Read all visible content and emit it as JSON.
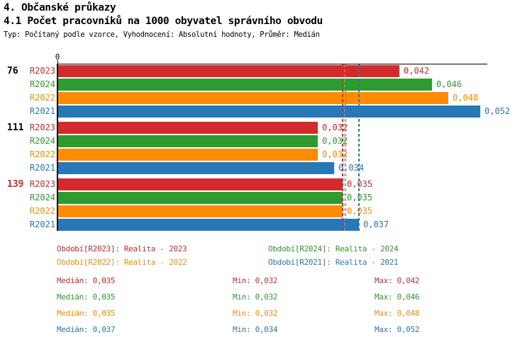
{
  "header": {
    "title": "4. Občanské průkazy",
    "subtitle": "4.1 Počet pracovníků na 1000 obyvatel správního obvodu",
    "meta": "Typ: Počítaný podle vzorce, Vyhodnocení: Absolutní hodnoty, Průměr: Medián"
  },
  "colors": {
    "R2023": "#d32b2b",
    "R2024": "#2e9b2e",
    "R2022": "#ff8c00",
    "R2021": "#2878b8",
    "axis": "#000000",
    "highlight_group_label": "#d32b2b",
    "normal_group_label": "#000000"
  },
  "chart_data": {
    "type": "bar",
    "orientation": "horizontal",
    "x_axis": {
      "origin_label": "0",
      "max": 0.0529,
      "grid": false
    },
    "series_order": [
      "R2023",
      "R2024",
      "R2022",
      "R2021"
    ],
    "groups": [
      {
        "label": "76",
        "highlight": false,
        "bars": [
          {
            "series": "R2023",
            "value": 0.042,
            "display": "0,042"
          },
          {
            "series": "R2024",
            "value": 0.046,
            "display": "0,046"
          },
          {
            "series": "R2022",
            "value": 0.048,
            "display": "0,048"
          },
          {
            "series": "R2021",
            "value": 0.052,
            "display": "0,052"
          }
        ]
      },
      {
        "label": "111",
        "highlight": false,
        "bars": [
          {
            "series": "R2023",
            "value": 0.032,
            "display": "0,032"
          },
          {
            "series": "R2024",
            "value": 0.032,
            "display": "0,032"
          },
          {
            "series": "R2022",
            "value": 0.032,
            "display": "0,032"
          },
          {
            "series": "R2021",
            "value": 0.034,
            "display": "0,034"
          }
        ]
      },
      {
        "label": "139",
        "highlight": true,
        "bars": [
          {
            "series": "R2023",
            "value": 0.035,
            "display": "0,035"
          },
          {
            "series": "R2024",
            "value": 0.035,
            "display": "0,035"
          },
          {
            "series": "R2022",
            "value": 0.035,
            "display": "0,035"
          },
          {
            "series": "R2021",
            "value": 0.037,
            "display": "0,037"
          }
        ]
      }
    ],
    "median_lines": [
      {
        "series": "R2023",
        "value": 0.035
      },
      {
        "series": "R2022",
        "value": 0.035
      },
      {
        "series": "R2024",
        "value": 0.035
      },
      {
        "series": "R2021",
        "value": 0.037
      }
    ]
  },
  "legend": {
    "items": [
      {
        "series": "R2023",
        "label": "Období[R2023]: Realita - 2023"
      },
      {
        "series": "R2024",
        "label": "Období[R2024]: Realita - 2024"
      },
      {
        "series": "R2022",
        "label": "Období[R2022]: Realita - 2022"
      },
      {
        "series": "R2021",
        "label": "Období[R2021]: Realita - 2021"
      }
    ]
  },
  "stats": {
    "labels": {
      "median": "Medián:",
      "min": "Min:",
      "max": "Max:"
    },
    "rows": [
      {
        "series": "R2023",
        "median": "0,035",
        "min": "0,032",
        "max": "0,042"
      },
      {
        "series": "R2024",
        "median": "0,035",
        "min": "0,032",
        "max": "0,046"
      },
      {
        "series": "R2022",
        "median": "0,035",
        "min": "0,032",
        "max": "0,048"
      },
      {
        "series": "R2021",
        "median": "0,037",
        "min": "0,034",
        "max": "0,052"
      }
    ]
  }
}
